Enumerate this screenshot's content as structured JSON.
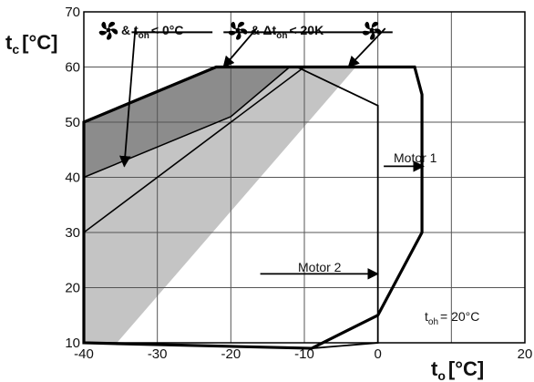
{
  "chart_data": {
    "type": "area",
    "xlabel": "t",
    "xlabel_sub": "o",
    "xlabel_unit": "[°C]",
    "ylabel": "t",
    "ylabel_sub": "c",
    "ylabel_unit": "[°C]",
    "xlim": [
      -40,
      20
    ],
    "ylim": [
      10,
      70
    ],
    "x_ticks": [
      -40,
      -30,
      -20,
      -10,
      0,
      20
    ],
    "y_ticks": [
      10,
      20,
      30,
      40,
      50,
      60,
      70
    ],
    "grid": true,
    "colors": {
      "dark_region": "#8c8c8c",
      "light_region": "#c4c4c4",
      "outline": "#000000",
      "grid": "#555555"
    },
    "regions": [
      {
        "shade": "light",
        "polygon": [
          [
            -40,
            10
          ],
          [
            -40,
            50
          ],
          [
            -22,
            60
          ],
          [
            -3,
            60
          ],
          [
            -35.5,
            10
          ]
        ]
      },
      {
        "shade": "dark",
        "polygon": [
          [
            -40,
            30
          ],
          [
            -40,
            50
          ],
          [
            -22,
            60
          ],
          [
            -12,
            60
          ],
          [
            -20,
            51
          ],
          [
            -40,
            40
          ]
        ]
      }
    ],
    "series": [
      {
        "label": "Motor 1",
        "x": [
          -40,
          -40,
          -22,
          5,
          6,
          6,
          0,
          -9,
          -40
        ],
        "y": [
          10,
          50,
          60,
          60,
          55,
          30,
          15,
          9,
          10
        ]
      },
      {
        "label": "Motor 2",
        "x": [
          -40,
          -40,
          -22,
          -11,
          0,
          0,
          -9,
          -40
        ],
        "y": [
          10,
          50,
          60,
          60,
          53,
          10,
          9,
          10
        ]
      }
    ],
    "boundary_lines": [
      {
        "x": [
          -40,
          -20
        ],
        "y": [
          40,
          51
        ]
      },
      {
        "x": [
          -40,
          -10
        ],
        "y": [
          30,
          60
        ]
      },
      {
        "x": [
          -20,
          -12
        ],
        "y": [
          51,
          60
        ]
      }
    ],
    "annotations": {
      "fan_toh": {
        "prefix": "& t",
        "sub": "oh",
        "suffix": "< 0°C",
        "arrow_from": [
          -33,
          67
        ],
        "arrow_to": [
          -34.5,
          42
        ]
      },
      "fan_dtoh": {
        "prefix": "& Δt",
        "sub": "oh",
        "suffix": "< 20K",
        "arrow_from": [
          -16.5,
          67
        ],
        "arrow_to": [
          -21,
          60
        ]
      },
      "fan_right": {
        "arrow_from": [
          1,
          67
        ],
        "arrow_to": [
          -4,
          60
        ]
      },
      "motor1_arrow": {
        "x": [
          0.8,
          6.2
        ],
        "y": [
          42,
          42
        ]
      },
      "motor2_arrow": {
        "x": [
          -16,
          0
        ],
        "y": [
          22.5,
          22.5
        ]
      },
      "note_prefix": "t",
      "note_sub": "oh",
      "note_suffix": "= 20°C"
    }
  }
}
